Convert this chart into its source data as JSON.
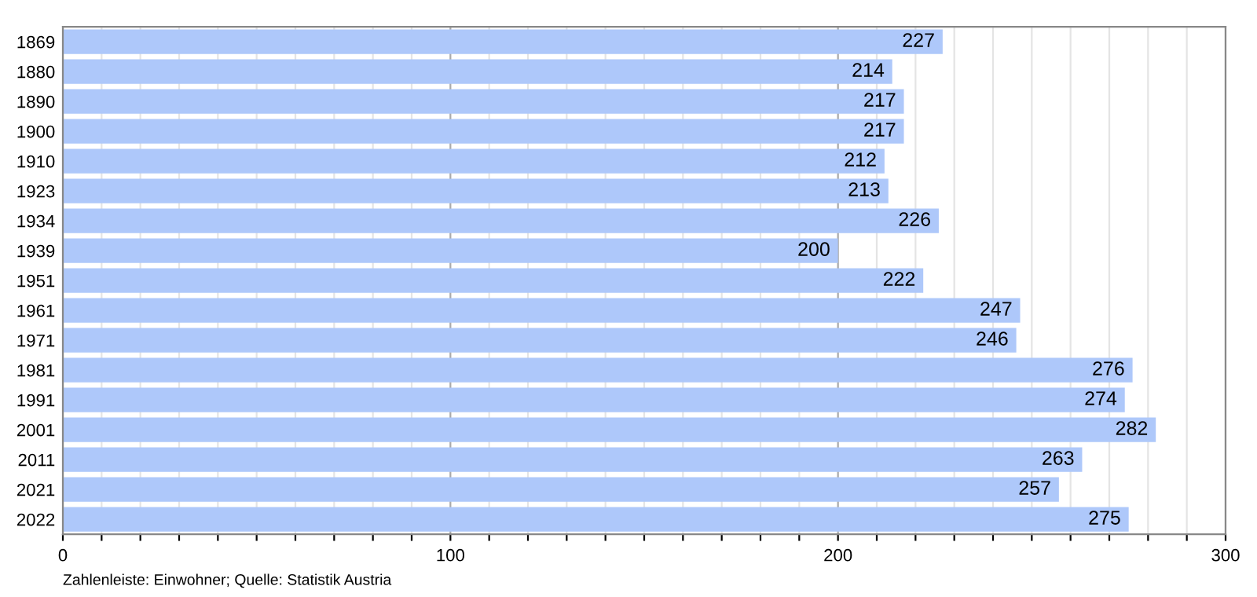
{
  "chart_data": {
    "type": "bar",
    "orientation": "horizontal",
    "categories": [
      "1869",
      "1880",
      "1890",
      "1900",
      "1910",
      "1923",
      "1934",
      "1939",
      "1951",
      "1961",
      "1971",
      "1981",
      "1991",
      "2001",
      "2011",
      "2021",
      "2022"
    ],
    "values": [
      227,
      214,
      217,
      217,
      212,
      213,
      226,
      200,
      222,
      247,
      246,
      276,
      274,
      282,
      263,
      257,
      275
    ],
    "color": "#aec8fa",
    "xlim": [
      0,
      300
    ],
    "xticks": [
      0,
      {
        "value": 10,
        "label": null
      },
      {
        "value": 20,
        "label": null
      },
      {
        "value": 30,
        "label": null
      },
      {
        "value": 40,
        "label": null
      },
      {
        "value": 50,
        "label": null
      },
      {
        "value": 60,
        "label": null
      },
      {
        "value": 70,
        "label": null
      },
      {
        "value": 80,
        "label": null
      },
      {
        "value": 90,
        "label": null
      },
      100,
      {
        "value": 110,
        "label": null
      },
      {
        "value": 120,
        "label": null
      },
      {
        "value": 130,
        "label": null
      },
      {
        "value": 140,
        "label": null
      },
      {
        "value": 150,
        "label": null
      },
      {
        "value": 160,
        "label": null
      },
      {
        "value": 170,
        "label": null
      },
      {
        "value": 180,
        "label": null
      },
      {
        "value": 190,
        "label": null
      },
      200,
      {
        "value": 210,
        "label": null
      },
      {
        "value": 220,
        "label": null
      },
      {
        "value": 230,
        "label": null
      },
      {
        "value": 240,
        "label": null
      },
      {
        "value": 250,
        "label": null
      },
      {
        "value": 260,
        "label": null
      },
      {
        "value": 270,
        "label": null
      },
      {
        "value": 280,
        "label": null
      },
      {
        "value": 290,
        "label": null
      },
      300
    ],
    "grid": "x",
    "data_labels": true,
    "annotations": [
      "Zahlenleiste: Einwohner; Quelle: Statistik Austria"
    ]
  }
}
